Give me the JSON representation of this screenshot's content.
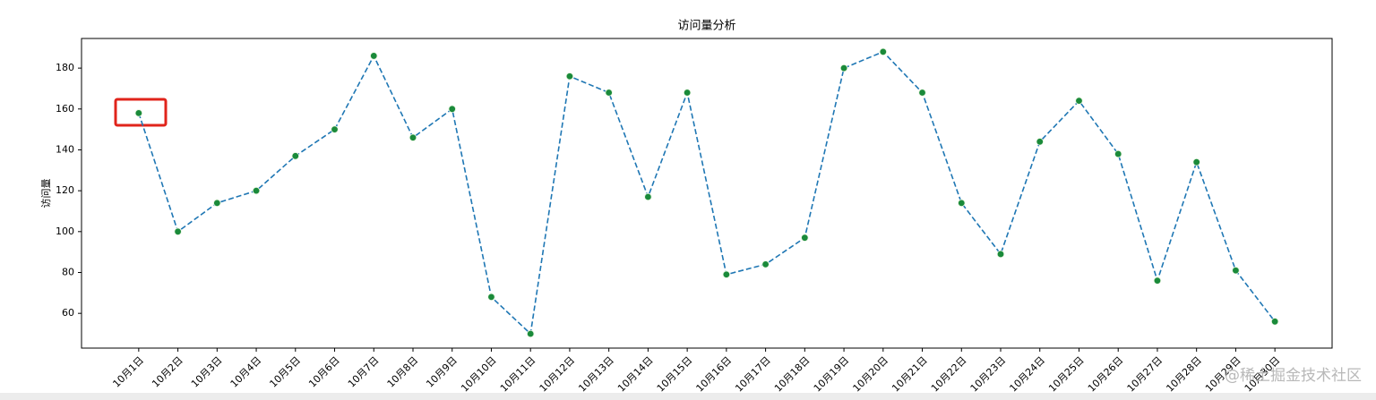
{
  "chart_data": {
    "type": "line",
    "title": "访问量分析",
    "y_label": "访问量",
    "categories": [
      "10月1日",
      "10月2日",
      "10月3日",
      "10月4日",
      "10月5日",
      "10月6日",
      "10月7日",
      "10月8日",
      "10月9日",
      "10月10日",
      "10月11日",
      "10月12日",
      "10月13日",
      "10月14日",
      "10月15日",
      "10月16日",
      "10月17日",
      "10月18日",
      "10月19日",
      "10月20日",
      "10月21日",
      "10月22日",
      "10月23日",
      "10月24日",
      "10月25日",
      "10月26日",
      "10月27日",
      "10月28日",
      "10月29日",
      "10月30日"
    ],
    "values": [
      158,
      100,
      114,
      120,
      137,
      150,
      186,
      146,
      160,
      68,
      50,
      176,
      168,
      117,
      168,
      79,
      84,
      97,
      180,
      188,
      168,
      114,
      89,
      144,
      164,
      138,
      76,
      134,
      81,
      56
    ],
    "color": "#1f77b4",
    "marker_color": "#1a8a3a",
    "line_style": "dashed",
    "ylim": [
      43,
      194.5
    ],
    "yticks": [
      60,
      80,
      100,
      120,
      140,
      160,
      180
    ],
    "watermark": "@稀土掘金技术社区"
  }
}
